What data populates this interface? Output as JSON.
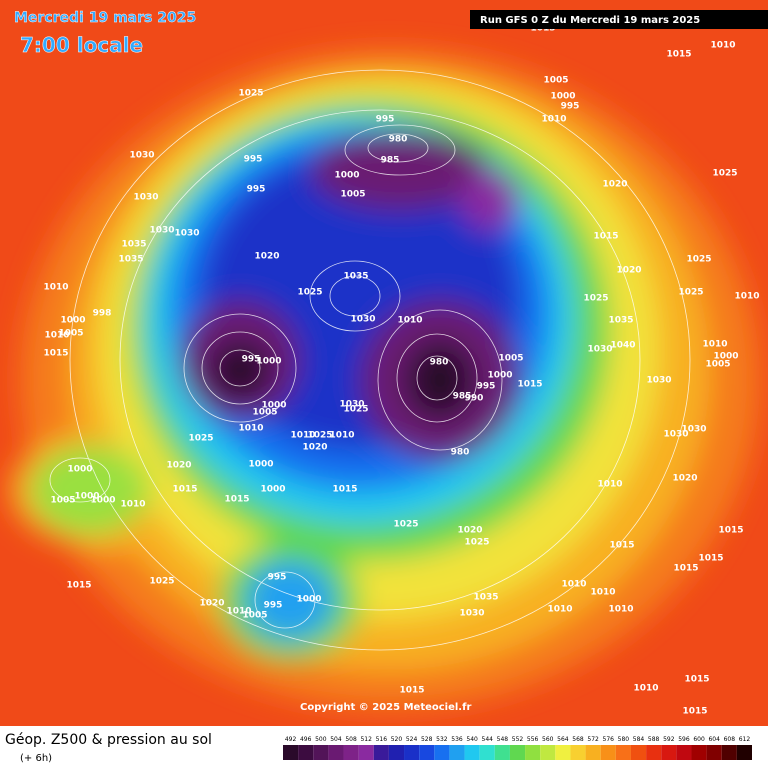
{
  "header": {
    "date": "Mercredi 19 mars 2025",
    "time": "7:00 locale",
    "run": "Run GFS 0 Z du Mercredi 19 mars 2025"
  },
  "footer": {
    "title": "Géop. Z500 & pression au sol",
    "lead": "(+ 6h)",
    "copyright": "Copyright © 2025 Meteociel.fr"
  },
  "scale": {
    "labels": [
      492,
      496,
      500,
      504,
      508,
      512,
      516,
      520,
      524,
      528,
      532,
      536,
      540,
      544,
      548,
      552,
      556,
      560,
      564,
      568,
      572,
      576,
      580,
      584,
      588,
      592,
      596,
      600,
      604,
      608,
      612
    ],
    "colors": [
      "#2a0a2a",
      "#3c0c40",
      "#521458",
      "#6a1a72",
      "#7e2288",
      "#8a2aa0",
      "#3a1a9a",
      "#2020b0",
      "#1a30c8",
      "#1848e0",
      "#1870f0",
      "#20a0f0",
      "#20c8f0",
      "#30e0d0",
      "#40e090",
      "#60d850",
      "#90e040",
      "#c0e840",
      "#f0f040",
      "#f8d030",
      "#f8b020",
      "#f89018",
      "#f87018",
      "#f05010",
      "#e83010",
      "#d81810",
      "#c00810",
      "#a00000",
      "#800000",
      "#500000",
      "#200000"
    ]
  },
  "isobar_labels": [
    "1025",
    "1030",
    "1030",
    "995",
    "995",
    "995",
    "980",
    "985",
    "1000",
    "1005",
    "1005",
    "1000",
    "995",
    "1010",
    "1010",
    "1015",
    "1015",
    "1020",
    "1025",
    "1015",
    "1020",
    "1025",
    "1025",
    "1025",
    "1035",
    "1040",
    "1030",
    "1010",
    "1000",
    "1005",
    "1010",
    "1030",
    "1030",
    "1030",
    "1020",
    "1010",
    "1015",
    "1015",
    "1015",
    "1015",
    "1010",
    "1010",
    "1010",
    "1010",
    "1010",
    "1015",
    "1015",
    "1015",
    "1035",
    "1030",
    "1010",
    "1025",
    "1020",
    "1035",
    "1030",
    "1030",
    "1035",
    "1010",
    "1000",
    "998",
    "1010",
    "1005",
    "1015",
    "995",
    "1000",
    "980",
    "1005",
    "1000",
    "995",
    "990",
    "985",
    "1015",
    "1000",
    "1005",
    "1010",
    "1030",
    "1025",
    "1010",
    "1025",
    "1010",
    "1020",
    "980",
    "1025",
    "1020",
    "1000",
    "1015",
    "1015",
    "1000",
    "1015",
    "1000",
    "1005",
    "1000",
    "1000",
    "1010",
    "1025",
    "1020",
    "1025",
    "1035",
    "1030",
    "995",
    "995",
    "1000",
    "1010",
    "1005",
    "1020",
    "1025",
    "1015"
  ]
}
